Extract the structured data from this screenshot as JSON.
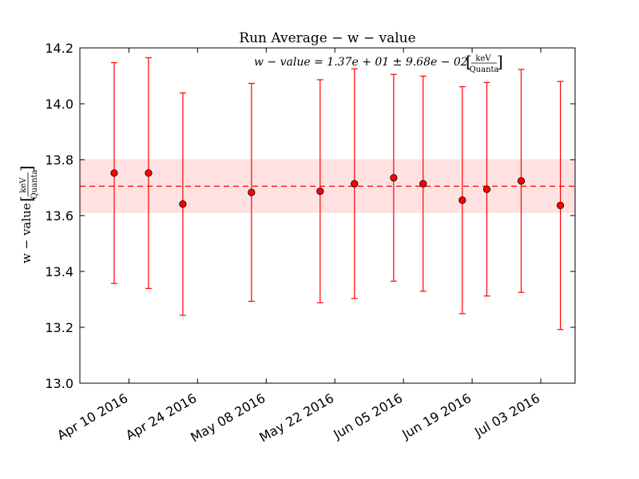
{
  "chart_data": {
    "type": "scatter",
    "title": "Run Average − w − value",
    "ylabel": "w − value [keV/Quanta]",
    "ylabel_main": "w − value",
    "ylabel_unit_num": "keV",
    "ylabel_unit_den": "Quanta",
    "xlabel": "",
    "annotation": "w − value = 1.37e + 01 ± 9.68e − 02",
    "annotation_unit_num": "keV",
    "annotation_unit_den": "Quanta",
    "mean": 13.705,
    "band": [
      13.609,
      13.802
    ],
    "ylim": [
      13.0,
      14.2
    ],
    "xlim": [
      "2016-03-31",
      "2016-07-10"
    ],
    "yticks": [
      "13.0",
      "13.2",
      "13.4",
      "13.6",
      "13.8",
      "14.0",
      "14.2"
    ],
    "xticks": [
      {
        "date": "2016-04-10",
        "label": "Apr 10 2016"
      },
      {
        "date": "2016-04-24",
        "label": "Apr 24 2016"
      },
      {
        "date": "2016-05-08",
        "label": "May 08 2016"
      },
      {
        "date": "2016-05-22",
        "label": "May 22 2016"
      },
      {
        "date": "2016-06-05",
        "label": "Jun 05 2016"
      },
      {
        "date": "2016-06-19",
        "label": "Jun 19 2016"
      },
      {
        "date": "2016-07-03",
        "label": "Jul 03 2016"
      }
    ],
    "points": [
      {
        "date": "2016-04-07",
        "y": 13.752,
        "yerr": 0.395
      },
      {
        "date": "2016-04-14",
        "y": 13.752,
        "yerr": 0.413
      },
      {
        "date": "2016-04-21",
        "y": 13.641,
        "yerr": 0.398
      },
      {
        "date": "2016-05-05",
        "y": 13.683,
        "yerr": 0.39
      },
      {
        "date": "2016-05-19",
        "y": 13.687,
        "yerr": 0.399
      },
      {
        "date": "2016-05-26",
        "y": 13.714,
        "yerr": 0.411
      },
      {
        "date": "2016-06-03",
        "y": 13.735,
        "yerr": 0.37
      },
      {
        "date": "2016-06-09",
        "y": 13.714,
        "yerr": 0.385
      },
      {
        "date": "2016-06-17",
        "y": 13.655,
        "yerr": 0.406
      },
      {
        "date": "2016-06-22",
        "y": 13.694,
        "yerr": 0.382
      },
      {
        "date": "2016-06-29",
        "y": 13.724,
        "yerr": 0.399
      },
      {
        "date": "2016-07-07",
        "y": 13.636,
        "yerr": 0.444
      }
    ],
    "colors": {
      "marker": "#ff0000",
      "errorbar": "#ff0000",
      "mean_line": "#ff0000",
      "band": "#ffb3b3"
    },
    "grid": false
  }
}
